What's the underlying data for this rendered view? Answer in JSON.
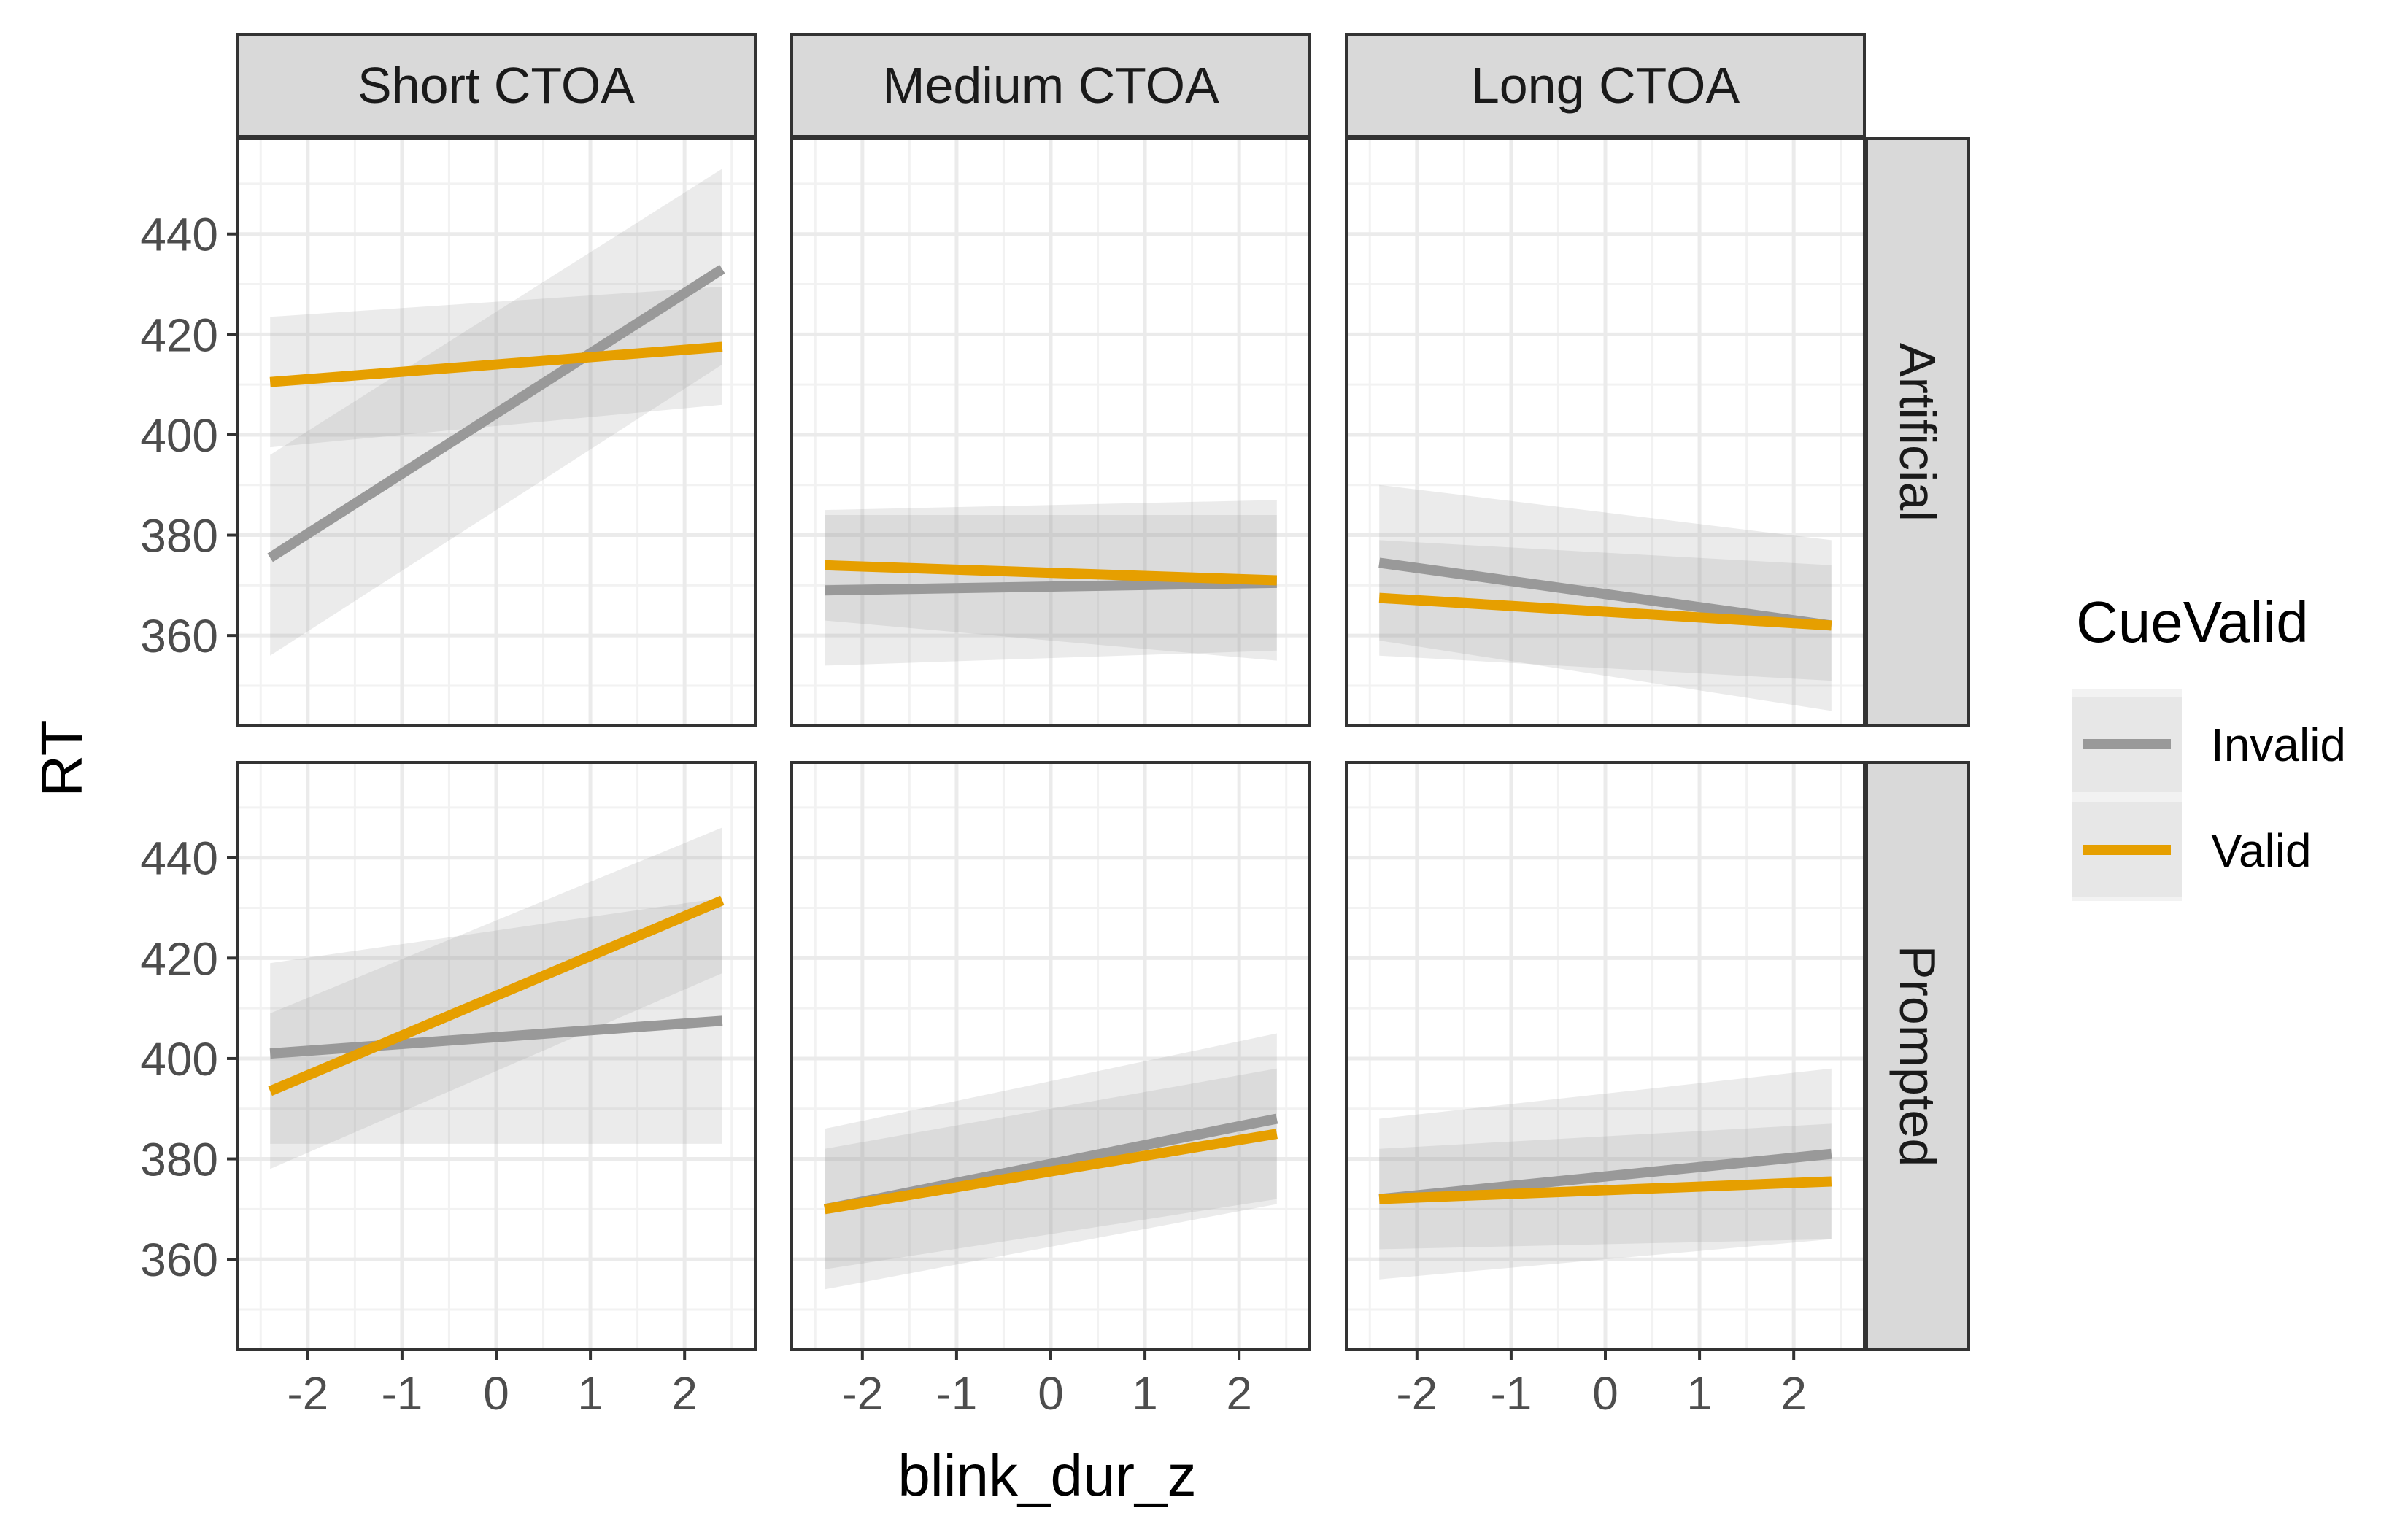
{
  "chart_data": {
    "type": "line",
    "xlabel": "blink_dur_z",
    "ylabel": "RT",
    "x_ticks": [
      -2,
      -1,
      0,
      1,
      2
    ],
    "y_ticks": [
      360,
      380,
      400,
      420,
      440
    ],
    "xlim": [
      -2.75,
      2.75
    ],
    "ylim": [
      342,
      459
    ],
    "col_facets": [
      "Short CTOA",
      "Medium CTOA",
      "Long CTOA"
    ],
    "row_facets": [
      "Artificial",
      "Prompted"
    ],
    "grid": true,
    "legend": {
      "title": "CueValid",
      "position": "right",
      "entries": [
        {
          "name": "Invalid",
          "color": "#999999"
        },
        {
          "name": "Valid",
          "color": "#E69F00"
        }
      ]
    },
    "ribbon_color": "#999999",
    "panels": [
      {
        "row": "Artificial",
        "col": "Short CTOA",
        "series": [
          {
            "name": "Invalid",
            "x": [
              -2.4,
              2.4
            ],
            "y": [
              375.5,
              433.0
            ],
            "ci_lower": [
              356.0,
              414.0
            ],
            "ci_upper": [
              396.0,
              453.0
            ]
          },
          {
            "name": "Valid",
            "x": [
              -2.4,
              2.4
            ],
            "y": [
              410.5,
              417.5
            ],
            "ci_lower": [
              397.5,
              406.0
            ],
            "ci_upper": [
              423.5,
              429.5
            ]
          }
        ]
      },
      {
        "row": "Artificial",
        "col": "Medium CTOA",
        "series": [
          {
            "name": "Invalid",
            "x": [
              -2.4,
              2.4
            ],
            "y": [
              369.0,
              370.5
            ],
            "ci_lower": [
              354.0,
              357.0
            ],
            "ci_upper": [
              384.0,
              384.0
            ]
          },
          {
            "name": "Valid",
            "x": [
              -2.4,
              2.4
            ],
            "y": [
              374.0,
              371.0
            ],
            "ci_lower": [
              363.0,
              355.0
            ],
            "ci_upper": [
              385.0,
              387.0
            ]
          }
        ]
      },
      {
        "row": "Artificial",
        "col": "Long CTOA",
        "series": [
          {
            "name": "Invalid",
            "x": [
              -2.4,
              2.4
            ],
            "y": [
              374.5,
              362.0
            ],
            "ci_lower": [
              359.0,
              345.0
            ],
            "ci_upper": [
              390.0,
              379.0
            ]
          },
          {
            "name": "Valid",
            "x": [
              -2.4,
              2.4
            ],
            "y": [
              367.5,
              362.0
            ],
            "ci_lower": [
              356.0,
              351.0
            ],
            "ci_upper": [
              379.0,
              374.0
            ]
          }
        ]
      },
      {
        "row": "Prompted",
        "col": "Short CTOA",
        "series": [
          {
            "name": "Invalid",
            "x": [
              -2.4,
              2.4
            ],
            "y": [
              401.0,
              407.5
            ],
            "ci_lower": [
              383.0,
              383.0
            ],
            "ci_upper": [
              419.0,
              432.0
            ]
          },
          {
            "name": "Valid",
            "x": [
              -2.4,
              2.4
            ],
            "y": [
              393.5,
              431.5
            ],
            "ci_lower": [
              378.0,
              417.0
            ],
            "ci_upper": [
              409.0,
              446.0
            ]
          }
        ]
      },
      {
        "row": "Prompted",
        "col": "Medium CTOA",
        "series": [
          {
            "name": "Invalid",
            "x": [
              -2.4,
              2.4
            ],
            "y": [
              370.0,
              388.0
            ],
            "ci_lower": [
              354.0,
              371.0
            ],
            "ci_upper": [
              386.0,
              405.0
            ]
          },
          {
            "name": "Valid",
            "x": [
              -2.4,
              2.4
            ],
            "y": [
              370.0,
              385.0
            ],
            "ci_lower": [
              358.0,
              372.0
            ],
            "ci_upper": [
              382.0,
              398.0
            ]
          }
        ]
      },
      {
        "row": "Prompted",
        "col": "Long CTOA",
        "series": [
          {
            "name": "Invalid",
            "x": [
              -2.4,
              2.4
            ],
            "y": [
              372.0,
              381.0
            ],
            "ci_lower": [
              356.0,
              364.0
            ],
            "ci_upper": [
              388.0,
              398.0
            ]
          },
          {
            "name": "Valid",
            "x": [
              -2.4,
              2.4
            ],
            "y": [
              372.0,
              375.5
            ],
            "ci_lower": [
              362.0,
              364.0
            ],
            "ci_upper": [
              382.0,
              387.0
            ]
          }
        ]
      }
    ]
  }
}
